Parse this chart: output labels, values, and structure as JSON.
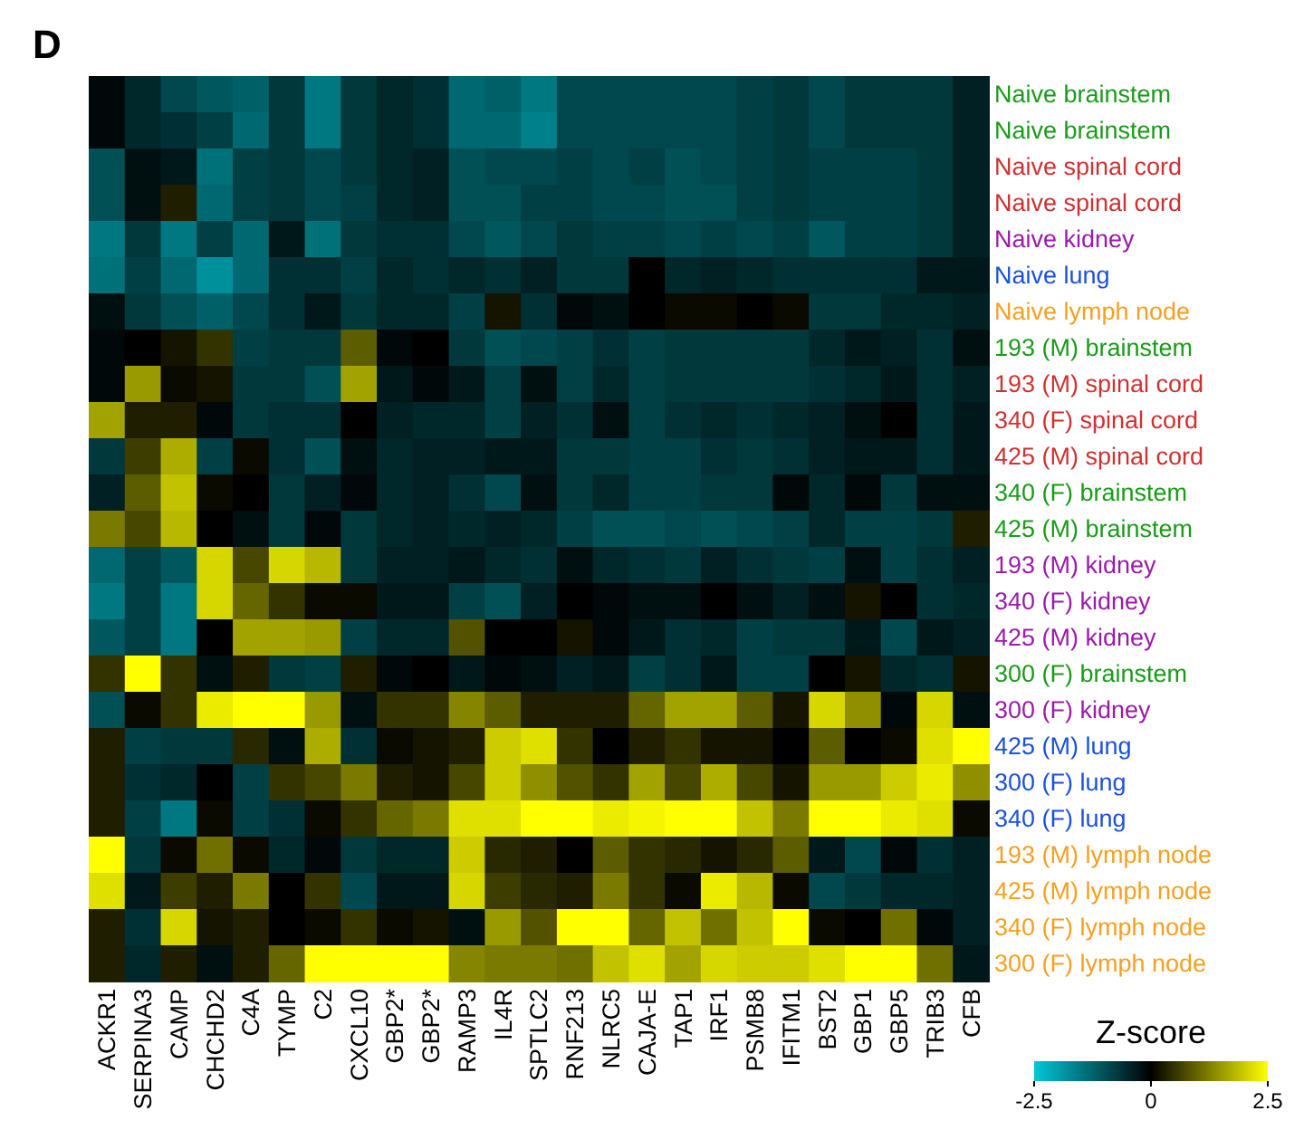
{
  "chart_data": {
    "type": "heatmap",
    "title": "D",
    "clabel": "Z-score",
    "categories": [
      "ACKR1",
      "SERPINA3",
      "CAMP",
      "CHCHD2",
      "C4A",
      "TYMP",
      "C2",
      "CXCL10",
      "GBP2*",
      "GBP2*",
      "RAMP3",
      "IL4R",
      "SPTLC2",
      "RNF213",
      "NLRC5",
      "CAJA-E",
      "TAP1",
      "IRF1",
      "PSMB8",
      "IFITM1",
      "BST2",
      "GBP1",
      "GBP5",
      "TRIB3",
      "CFB"
    ],
    "y_categories": [
      "Naive brainstem",
      "Naive brainstem",
      "Naive spinal cord",
      "Naive spinal cord",
      "Naive kidney",
      "Naive lung",
      "Naive lymph node",
      "193 (M) brainstem",
      "193 (M) spinal cord",
      "340 (F) spinal cord",
      "425 (M) spinal cord",
      "340 (F) brainstem",
      "425 (M) brainstem",
      "193 (M) kidney",
      "340 (F) kidney",
      "425 (M) kidney",
      "300 (F) brainstem",
      "300 (F) kidney",
      "425 (M) lung",
      "300 (F) lung",
      "340 (F) lung",
      "193 (M) lymph node",
      "425 (M) lymph node",
      "340 (F) lymph node",
      "300 (F) lymph node"
    ],
    "colors": [
      "#00c8d8",
      "#000000",
      "#ffff00"
    ],
    "clim": [
      -2.5,
      2.5
    ],
    "cticks": [
      -2.5,
      0,
      2.5
    ],
    "cells": [
      [
        -0.1,
        -0.5,
        -0.9,
        -1.1,
        -1.2,
        -0.7,
        -1.5,
        -0.7,
        -0.5,
        -0.6,
        -1.3,
        -1.2,
        -1.5,
        -0.9,
        -0.9,
        -0.9,
        -0.9,
        -0.9,
        -0.8,
        -0.7,
        -0.9,
        -0.7,
        -0.7,
        -0.7,
        -0.4
      ],
      [
        -0.1,
        -0.5,
        -0.6,
        -0.8,
        -1.3,
        -0.7,
        -1.5,
        -0.7,
        -0.5,
        -0.6,
        -1.3,
        -1.3,
        -1.6,
        -0.9,
        -0.9,
        -0.9,
        -0.9,
        -0.9,
        -0.8,
        -0.7,
        -0.9,
        -0.7,
        -0.7,
        -0.7,
        -0.4
      ],
      [
        -1.0,
        -0.2,
        -0.3,
        -1.4,
        -0.8,
        -0.7,
        -0.9,
        -0.7,
        -0.5,
        -0.4,
        -1.0,
        -0.9,
        -0.9,
        -0.8,
        -0.9,
        -0.8,
        -1.0,
        -0.9,
        -0.8,
        -0.7,
        -0.8,
        -0.8,
        -0.8,
        -0.7,
        -0.4
      ],
      [
        -1.0,
        -0.2,
        0.3,
        -1.3,
        -0.8,
        -0.7,
        -0.9,
        -0.8,
        -0.5,
        -0.4,
        -1.0,
        -1.0,
        -0.8,
        -0.8,
        -0.9,
        -0.9,
        -1.0,
        -1.0,
        -0.8,
        -0.7,
        -0.8,
        -0.8,
        -0.8,
        -0.7,
        -0.4
      ],
      [
        -1.5,
        -0.7,
        -1.5,
        -0.8,
        -1.3,
        -0.3,
        -1.4,
        -0.7,
        -0.6,
        -0.6,
        -0.9,
        -1.1,
        -0.9,
        -0.7,
        -0.8,
        -0.8,
        -0.9,
        -0.8,
        -0.9,
        -0.8,
        -1.1,
        -0.8,
        -0.8,
        -0.7,
        -0.4
      ],
      [
        -1.4,
        -0.8,
        -1.3,
        -1.8,
        -1.3,
        -0.6,
        -0.6,
        -0.8,
        -0.5,
        -0.6,
        -0.5,
        -0.6,
        -0.4,
        -0.7,
        -0.7,
        0.0,
        -0.5,
        -0.4,
        -0.5,
        -0.6,
        -0.6,
        -0.6,
        -0.6,
        -0.3,
        -0.3
      ],
      [
        -0.2,
        -0.7,
        -1.0,
        -1.2,
        -0.9,
        -0.6,
        -0.3,
        -0.7,
        -0.5,
        -0.5,
        -0.8,
        0.2,
        -0.6,
        -0.1,
        -0.2,
        0.0,
        0.1,
        0.1,
        0.0,
        0.1,
        -0.7,
        -0.7,
        -0.5,
        -0.5,
        -0.4
      ],
      [
        -0.1,
        0.0,
        0.2,
        0.5,
        -0.8,
        -0.7,
        -0.7,
        0.9,
        -0.1,
        0.0,
        -0.7,
        -1.0,
        -0.9,
        -0.8,
        -0.6,
        -0.8,
        -0.7,
        -0.7,
        -0.7,
        -0.7,
        -0.5,
        -0.3,
        -0.4,
        -0.6,
        -0.2
      ],
      [
        -0.1,
        1.5,
        0.1,
        0.2,
        -0.7,
        -0.7,
        -1.0,
        1.6,
        -0.3,
        -0.1,
        -0.3,
        -0.8,
        -0.2,
        -0.8,
        -0.5,
        -0.8,
        -0.7,
        -0.7,
        -0.7,
        -0.7,
        -0.6,
        -0.5,
        -0.3,
        -0.6,
        -0.4
      ],
      [
        1.6,
        0.3,
        0.3,
        -0.1,
        -0.7,
        -0.6,
        -0.6,
        0.0,
        -0.4,
        -0.5,
        -0.5,
        -0.8,
        -0.4,
        -0.6,
        -0.2,
        -0.8,
        -0.6,
        -0.5,
        -0.6,
        -0.5,
        -0.4,
        -0.2,
        0.0,
        -0.6,
        -0.3
      ],
      [
        -0.7,
        0.6,
        1.7,
        -0.8,
        0.1,
        -0.6,
        -1.0,
        -0.2,
        -0.5,
        -0.4,
        -0.4,
        -0.3,
        -0.3,
        -0.7,
        -0.7,
        -0.8,
        -0.8,
        -0.6,
        -0.7,
        -0.6,
        -0.4,
        -0.3,
        -0.3,
        -0.6,
        -0.3
      ],
      [
        -0.4,
        0.9,
        1.9,
        0.1,
        0.0,
        -0.7,
        -0.4,
        -0.1,
        -0.5,
        -0.4,
        -0.6,
        -0.9,
        -0.2,
        -0.7,
        -0.5,
        -0.8,
        -0.8,
        -0.7,
        -0.7,
        -0.1,
        -0.5,
        -0.1,
        -0.7,
        -0.2,
        -0.2
      ],
      [
        1.2,
        0.7,
        1.8,
        0.0,
        -0.2,
        -0.7,
        -0.1,
        -0.7,
        -0.5,
        -0.4,
        -0.5,
        -0.4,
        -0.5,
        -0.8,
        -1.0,
        -1.0,
        -0.9,
        -1.0,
        -0.9,
        -0.8,
        -0.5,
        -0.8,
        -0.8,
        -0.7,
        0.3
      ],
      [
        -1.3,
        -0.8,
        -1.1,
        2.1,
        0.7,
        2.1,
        1.8,
        -0.7,
        -0.4,
        -0.4,
        -0.3,
        -0.5,
        -0.6,
        -0.2,
        -0.5,
        -0.6,
        -0.7,
        -0.4,
        -0.6,
        -0.7,
        -0.8,
        -0.2,
        -0.8,
        -0.6,
        -0.4
      ],
      [
        -1.5,
        -0.8,
        -1.5,
        2.1,
        1.0,
        0.5,
        0.1,
        0.1,
        -0.3,
        -0.3,
        -0.8,
        -1.0,
        -0.4,
        0.0,
        -0.1,
        -0.2,
        -0.2,
        0.0,
        -0.2,
        -0.4,
        -0.2,
        0.2,
        0.0,
        -0.6,
        -0.5
      ],
      [
        -1.1,
        -0.8,
        -1.5,
        0.0,
        1.6,
        1.6,
        1.5,
        -0.8,
        -0.5,
        -0.5,
        0.8,
        0.0,
        0.0,
        0.2,
        -0.1,
        -0.3,
        -0.6,
        -0.5,
        -0.8,
        -0.7,
        -0.7,
        -0.3,
        -0.9,
        -0.3,
        -0.4
      ],
      [
        0.5,
        2.5,
        0.5,
        -0.2,
        0.3,
        -0.7,
        -0.8,
        0.3,
        -0.1,
        0.0,
        -0.3,
        -0.1,
        -0.2,
        -0.4,
        -0.3,
        -0.8,
        -0.6,
        -0.3,
        -0.8,
        -0.8,
        0.0,
        0.2,
        -0.5,
        -0.6,
        0.2
      ],
      [
        -1.0,
        0.1,
        0.5,
        2.3,
        2.5,
        2.5,
        1.5,
        -0.2,
        0.5,
        0.5,
        1.3,
        0.9,
        0.3,
        0.3,
        0.3,
        1.0,
        1.6,
        1.6,
        0.9,
        0.2,
        2.1,
        1.4,
        -0.1,
        2.1,
        -0.2
      ],
      [
        0.3,
        -0.8,
        -0.7,
        -0.7,
        0.4,
        -0.2,
        1.7,
        -0.6,
        0.1,
        0.2,
        0.3,
        2.0,
        2.2,
        0.5,
        0.0,
        0.3,
        0.5,
        0.2,
        0.2,
        0.0,
        0.9,
        0.0,
        0.1,
        2.2,
        2.5
      ],
      [
        0.3,
        -0.6,
        -0.5,
        0.0,
        -0.8,
        0.5,
        0.7,
        1.2,
        0.3,
        0.2,
        0.7,
        2.0,
        1.4,
        0.8,
        0.5,
        1.6,
        0.7,
        1.7,
        0.7,
        0.2,
        1.5,
        1.5,
        2.0,
        2.3,
        1.4
      ],
      [
        0.3,
        -0.8,
        -1.5,
        0.1,
        -0.8,
        -0.6,
        0.1,
        0.5,
        1.0,
        1.2,
        2.2,
        2.2,
        2.5,
        2.5,
        2.3,
        2.4,
        2.5,
        2.5,
        1.9,
        1.2,
        2.5,
        2.5,
        2.3,
        2.2,
        0.1
      ],
      [
        2.5,
        -0.7,
        0.1,
        1.1,
        0.1,
        -0.5,
        -0.1,
        -0.7,
        -0.5,
        -0.5,
        2.0,
        0.4,
        0.3,
        0.0,
        0.9,
        0.5,
        0.4,
        0.2,
        0.4,
        0.9,
        -0.3,
        -0.9,
        -0.1,
        -0.6,
        -0.4
      ],
      [
        2.2,
        -0.3,
        0.6,
        0.3,
        1.2,
        0.0,
        0.5,
        -0.9,
        -0.3,
        -0.3,
        2.1,
        0.6,
        0.4,
        0.3,
        1.2,
        0.5,
        0.1,
        2.3,
        1.8,
        0.1,
        -0.9,
        -0.7,
        -0.5,
        -0.5,
        -0.4
      ],
      [
        0.3,
        -0.6,
        2.1,
        0.2,
        0.3,
        0.0,
        0.1,
        0.5,
        0.1,
        0.2,
        -0.2,
        1.5,
        0.8,
        2.5,
        2.5,
        1.0,
        1.9,
        1.1,
        1.9,
        2.5,
        0.1,
        0.0,
        1.1,
        -0.1,
        -0.4
      ],
      [
        0.3,
        -0.5,
        0.3,
        -0.2,
        0.3,
        1.0,
        2.5,
        2.5,
        2.5,
        2.5,
        1.3,
        1.2,
        1.2,
        1.1,
        1.9,
        2.2,
        1.6,
        2.1,
        2.0,
        2.0,
        2.2,
        2.5,
        2.5,
        1.1,
        -0.3
      ]
    ]
  }
}
